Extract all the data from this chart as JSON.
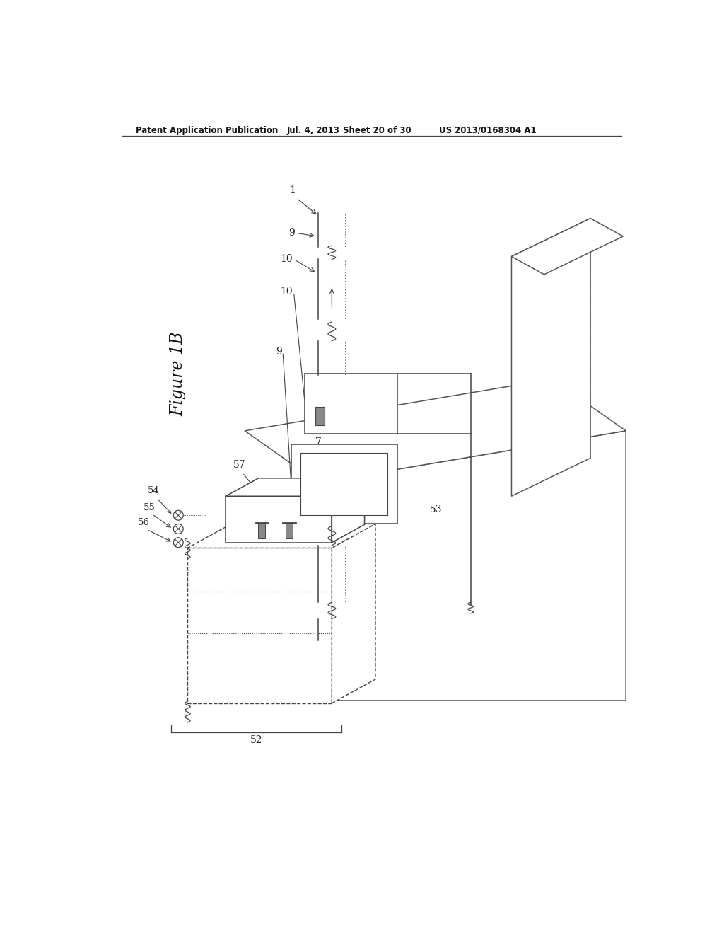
{
  "header_left": "Patent Application Publication",
  "header_center": "Jul. 4, 2013    Sheet 20 of 30",
  "header_right": "US 2013/0168304 A1",
  "figure_label": "Figure 1B",
  "bg": "#ffffff",
  "lc": "#333333",
  "hc": "#555555"
}
